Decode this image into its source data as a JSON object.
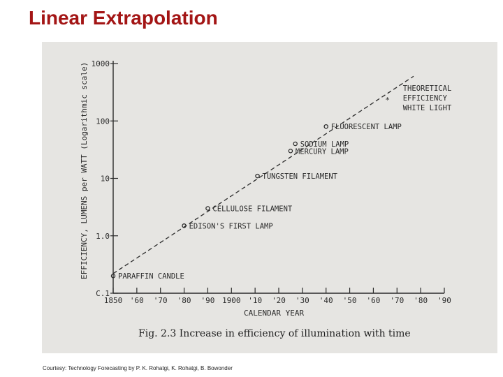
{
  "slide": {
    "title": "Linear Extrapolation",
    "credit": "Courtesy: Technology Forecasting by P. K. Rohatgi, K. Rohatgi, B. Bowonder"
  },
  "colors": {
    "title": "#a31515",
    "scan_background": "#e6e5e2",
    "ink": "#2a2a2a"
  },
  "chart_data": {
    "type": "scatter",
    "title": "",
    "caption": "Fig. 2.3 Increase in efficiency of illumination with time",
    "xlabel": "CALENDAR YEAR",
    "ylabel": "EFFICIENCY, LUMENS per WATT (Logarithmic scale)",
    "x_ticks": [
      "1850",
      "'60",
      "'70",
      "'80",
      "'90",
      "1900",
      "'10",
      "'20",
      "'30",
      "'40",
      "'50",
      "'60",
      "'70",
      "'80",
      "'90"
    ],
    "x_tick_years": [
      1850,
      1860,
      1870,
      1880,
      1890,
      1900,
      1910,
      1920,
      1930,
      1940,
      1950,
      1960,
      1970,
      1980,
      1990
    ],
    "y_ticks": [
      "C.1",
      "1.0",
      "10",
      "100",
      "1000"
    ],
    "y_tick_values": [
      0.1,
      1,
      10,
      100,
      1000
    ],
    "xlim": [
      1850,
      1990
    ],
    "ylim": [
      0.1,
      1000
    ],
    "yscale": "log",
    "grid": false,
    "points": [
      {
        "label": "PARAFFIN CANDLE",
        "x": 1850,
        "y": 0.2
      },
      {
        "label": "EDISON'S FIRST LAMP",
        "x": 1880,
        "y": 1.5
      },
      {
        "label": "CELLULOSE FILAMENT",
        "x": 1890,
        "y": 3
      },
      {
        "label": "TUNGSTEN FILAMENT",
        "x": 1911,
        "y": 11
      },
      {
        "label": "MERCURY LAMP",
        "x": 1925,
        "y": 30
      },
      {
        "label": "SODIUM LAMP",
        "x": 1927,
        "y": 40
      },
      {
        "label": "FLUORESCENT LAMP",
        "x": 1940,
        "y": 80
      }
    ],
    "theoretical": {
      "label": "THEORETICAL EFFICIENCY WHITE LIGHT",
      "label_lines": [
        "THEORETICAL",
        "EFFICIENCY",
        "WHITE LIGHT"
      ],
      "x": 1966,
      "y": 240
    },
    "trend_line": {
      "x": [
        1850,
        1977
      ],
      "y": [
        0.22,
        600
      ]
    }
  }
}
